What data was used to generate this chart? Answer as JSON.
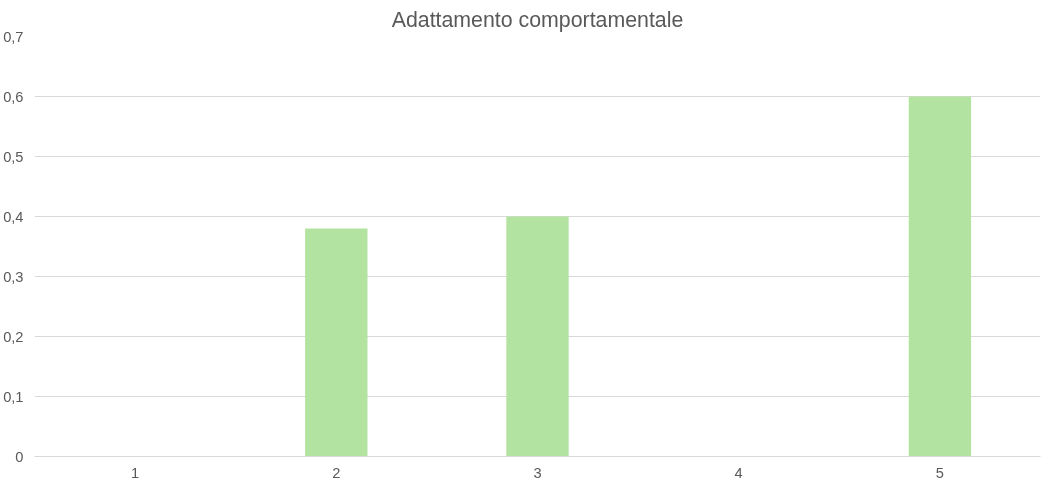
{
  "chart_data": {
    "type": "bar",
    "title": "Adattamento comportamentale",
    "categories": [
      "1",
      "2",
      "3",
      "4",
      "5"
    ],
    "values": [
      0,
      0.38,
      0.4,
      0,
      0.6
    ],
    "color": "#b3e3a0",
    "ylim": [
      0,
      0.7
    ],
    "yticks": [
      0,
      {
        "value": 0.1,
        "label": "0,1"
      },
      {
        "value": 0.2,
        "label": "0,2"
      },
      {
        "value": 0.3,
        "label": "0,3"
      },
      {
        "value": 0.4,
        "label": "0,4"
      },
      {
        "value": 0.5,
        "label": "0,5"
      },
      {
        "value": 0.6,
        "label": "0,6"
      },
      {
        "value": 0.7,
        "label": "0,7"
      }
    ],
    "grid": "y"
  }
}
